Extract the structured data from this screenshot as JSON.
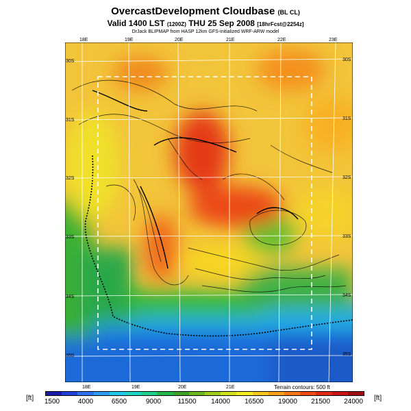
{
  "header": {
    "title": "OvercastDevelopment Cloudbase",
    "title_suffix": "(BL CL)",
    "valid_line": "Valid 1400 LST",
    "valid_utc": "(1200Z)",
    "valid_date": "THU 25 Sep 2008",
    "forecast_tag": "[18hrFcst@2254z]",
    "subtitle": "DrJack BLIPMAP from HASP 12km GFS-initialized WRF-ARW model"
  },
  "map": {
    "lon_top": [
      "18E",
      "19E",
      "20E",
      "21E",
      "22E",
      "23E"
    ],
    "lon_bottom": [
      "18E",
      "19E",
      "20E",
      "21E"
    ],
    "lat_left": [
      "30S",
      "31S",
      "32S",
      "33S",
      "34S",
      "35S"
    ],
    "lat_right": [
      "30S",
      "31S",
      "32S",
      "33S",
      "34S",
      "35S"
    ],
    "contour_note": "Terrain contours: 500 ft"
  },
  "legend": {
    "unit_left": "[ft]",
    "unit_right": "[ft]",
    "ticks": [
      "1500",
      "4000",
      "6500",
      "9000",
      "11500",
      "14000",
      "16500",
      "19000",
      "21500",
      "24000"
    ],
    "colors": [
      "#1a1aa6",
      "#1f3fd6",
      "#2e6ff0",
      "#2c9ef2",
      "#22c8ee",
      "#1fd6c4",
      "#1fcf8c",
      "#22b84a",
      "#3aa328",
      "#6ab81e",
      "#9ecf1a",
      "#d0e31c",
      "#f2ee22",
      "#f8c81e",
      "#f8a01a",
      "#f47818",
      "#ee4c16",
      "#e02a14",
      "#c81412",
      "#9c0e10"
    ]
  }
}
